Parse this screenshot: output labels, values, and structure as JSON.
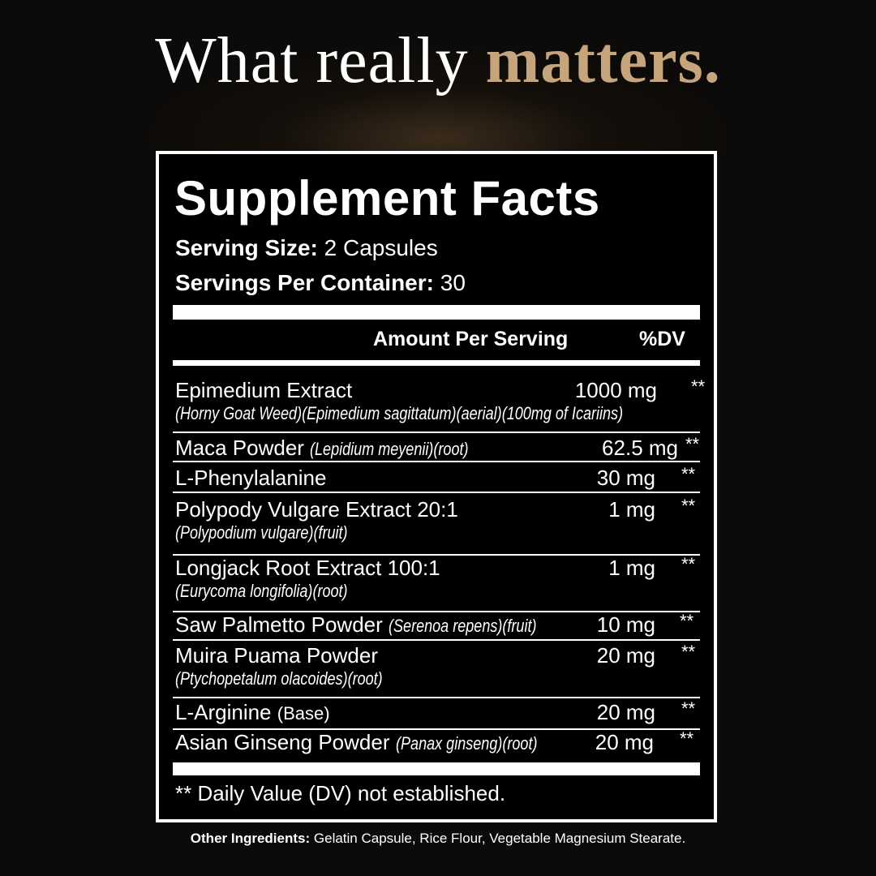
{
  "headline": {
    "lead": "What really",
    "accent": "matters."
  },
  "panel": {
    "title": "Supplement Facts",
    "serving_size": {
      "label": "Serving Size:",
      "value": "2 Capsules"
    },
    "servings_per_container": {
      "label": "Servings Per Container:",
      "value": "30"
    },
    "header": {
      "amount": "Amount Per Serving",
      "dv": "%DV"
    },
    "rows": [
      {
        "name": "Epimedium Extract",
        "detail": "(Horny Goat Weed)(Epimedium sagittatum)(aerial)(100mg of Icariins)",
        "amount": "1000 mg",
        "dv": "**"
      },
      {
        "name": "Maca Powder",
        "detail": "(Lepidium meyenii)(root)",
        "amount": "62.5 mg",
        "dv": "**"
      },
      {
        "name": "L-Phenylalanine",
        "amount": "30 mg",
        "dv": "**"
      },
      {
        "name": "Polypody Vulgare Extract 20:1",
        "detail": "(Polypodium vulgare)(fruit)",
        "amount": "1 mg",
        "dv": "**"
      },
      {
        "name": "Longjack Root Extract 100:1",
        "detail": "(Eurycoma longifolia)(root)",
        "amount": "1 mg",
        "dv": "**"
      },
      {
        "name": "Saw Palmetto Powder",
        "detail": "(Serenoa repens)(fruit)",
        "amount": "10 mg",
        "dv": "**"
      },
      {
        "name": "Muira Puama Powder",
        "detail": "(Ptychopetalum olacoides)(root)",
        "amount": "20 mg",
        "dv": "**"
      },
      {
        "name": "L-Arginine",
        "detail": "(Base)",
        "amount": "20 mg",
        "dv": "**"
      },
      {
        "name": "Asian Ginseng Powder",
        "detail": "(Panax ginseng)(root)",
        "amount": "20 mg",
        "dv": "**"
      }
    ],
    "footnote": "** Daily Value (DV) not established."
  },
  "other_ingredients": {
    "label": "Other Ingredients:",
    "value": "Gelatin Capsule, Rice Flour, Vegetable Magnesium Stearate."
  }
}
